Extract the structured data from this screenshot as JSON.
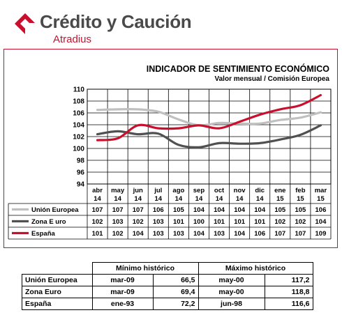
{
  "brand": {
    "name": "Crédito y Caución",
    "sub": "Atradius",
    "accent": "#c8102e"
  },
  "chart_data": {
    "type": "line",
    "title": "INDICADOR DE SENTIMIENTO ECONÓMICO",
    "subtitle": "Valor mensual / Comisión Europea",
    "ylim": [
      94,
      110
    ],
    "yticks": [
      94,
      96,
      98,
      100,
      102,
      104,
      106,
      108,
      110
    ],
    "grid": true,
    "legend": "table-below",
    "categories": [
      [
        "abr",
        "14"
      ],
      [
        "may",
        "14"
      ],
      [
        "jun",
        "14"
      ],
      [
        "jul",
        "14"
      ],
      [
        "ago",
        "14"
      ],
      [
        "sep",
        "14"
      ],
      [
        "oct",
        "14"
      ],
      [
        "nov",
        "14"
      ],
      [
        "dic",
        "14"
      ],
      [
        "ene",
        "15"
      ],
      [
        "feb",
        "15"
      ],
      [
        "mar",
        "15"
      ]
    ],
    "series": [
      {
        "name": "Unión Europea",
        "color": "#c0c0c0",
        "labels": [
          "107",
          "107",
          "107",
          "106",
          "105",
          "104",
          "104",
          "104",
          "104",
          "105",
          "105",
          "106"
        ],
        "values": [
          106.5,
          106.6,
          106.6,
          106.2,
          104.9,
          103.9,
          104.3,
          104.2,
          104.2,
          104.8,
          105.2,
          106.1
        ]
      },
      {
        "name": "Zona E uro",
        "color": "#505050",
        "labels": [
          "102",
          "103",
          "102",
          "103",
          "101",
          "100",
          "101",
          "101",
          "101",
          "102",
          "102",
          "104"
        ],
        "values": [
          102.4,
          102.9,
          102.4,
          102.5,
          100.6,
          100.2,
          100.9,
          100.8,
          100.9,
          101.5,
          102.3,
          103.9
        ]
      },
      {
        "name": "España",
        "color": "#c8102e",
        "labels": [
          "101",
          "102",
          "104",
          "103",
          "103",
          "104",
          "103",
          "104",
          "106",
          "107",
          "107",
          "109"
        ],
        "values": [
          101.4,
          101.7,
          103.9,
          103.4,
          103.4,
          103.9,
          103.4,
          104.5,
          105.7,
          106.6,
          107.3,
          109.0
        ]
      }
    ]
  },
  "hist_table": {
    "min_header": "Mínimo histórico",
    "max_header": "Máximo histórico",
    "rows": [
      {
        "name": "Unión Europea",
        "min_date": "mar-09",
        "min_val": "66,5",
        "max_date": "may-00",
        "max_val": "117,2"
      },
      {
        "name": "Zona Euro",
        "min_date": "mar-09",
        "min_val": "69,4",
        "max_date": "may-00",
        "max_val": "118,8"
      },
      {
        "name": "España",
        "min_date": "ene-93",
        "min_val": "72,2",
        "max_date": "jun-98",
        "max_val": "116,6"
      }
    ]
  }
}
